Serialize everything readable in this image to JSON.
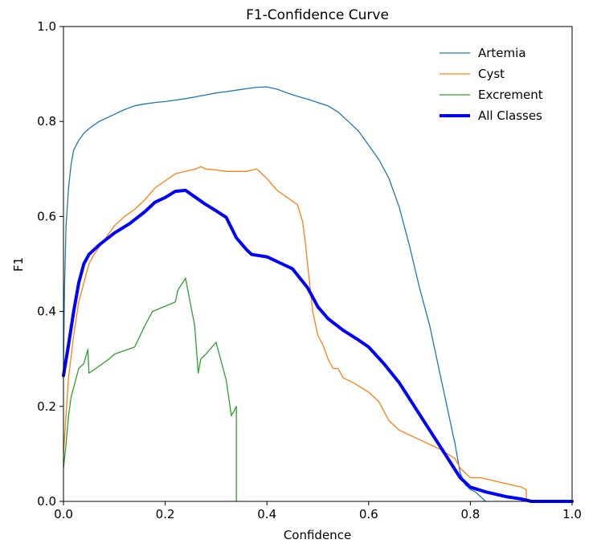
{
  "chart_data": {
    "type": "line",
    "title": "F1-Confidence Curve",
    "xlabel": "Confidence",
    "ylabel": "F1",
    "xlim": [
      0.0,
      1.0
    ],
    "ylim": [
      0.0,
      1.0
    ],
    "xticks": [
      "0.0",
      "0.2",
      "0.4",
      "0.6",
      "0.8",
      "1.0"
    ],
    "yticks": [
      "0.0",
      "0.2",
      "0.4",
      "0.6",
      "0.8",
      "1.0"
    ],
    "grid": false,
    "legend_position": "top-right",
    "series": [
      {
        "name": "Artemia",
        "color": "#1f77b4",
        "thick": false,
        "points": [
          [
            0.0,
            0.28
          ],
          [
            0.002,
            0.45
          ],
          [
            0.005,
            0.58
          ],
          [
            0.01,
            0.66
          ],
          [
            0.015,
            0.71
          ],
          [
            0.02,
            0.74
          ],
          [
            0.03,
            0.76
          ],
          [
            0.04,
            0.775
          ],
          [
            0.05,
            0.785
          ],
          [
            0.07,
            0.8
          ],
          [
            0.09,
            0.81
          ],
          [
            0.1,
            0.815
          ],
          [
            0.12,
            0.825
          ],
          [
            0.14,
            0.833
          ],
          [
            0.16,
            0.837
          ],
          [
            0.18,
            0.84
          ],
          [
            0.2,
            0.842
          ],
          [
            0.22,
            0.845
          ],
          [
            0.24,
            0.848
          ],
          [
            0.26,
            0.852
          ],
          [
            0.28,
            0.856
          ],
          [
            0.3,
            0.86
          ],
          [
            0.32,
            0.863
          ],
          [
            0.34,
            0.866
          ],
          [
            0.36,
            0.869
          ],
          [
            0.38,
            0.872
          ],
          [
            0.4,
            0.873
          ],
          [
            0.42,
            0.868
          ],
          [
            0.44,
            0.86
          ],
          [
            0.46,
            0.853
          ],
          [
            0.48,
            0.847
          ],
          [
            0.5,
            0.84
          ],
          [
            0.52,
            0.833
          ],
          [
            0.54,
            0.82
          ],
          [
            0.56,
            0.8
          ],
          [
            0.58,
            0.78
          ],
          [
            0.6,
            0.75
          ],
          [
            0.62,
            0.72
          ],
          [
            0.64,
            0.68
          ],
          [
            0.66,
            0.62
          ],
          [
            0.68,
            0.54
          ],
          [
            0.7,
            0.45
          ],
          [
            0.72,
            0.37
          ],
          [
            0.73,
            0.32
          ],
          [
            0.74,
            0.27
          ],
          [
            0.75,
            0.22
          ],
          [
            0.76,
            0.17
          ],
          [
            0.77,
            0.12
          ],
          [
            0.78,
            0.06
          ],
          [
            0.79,
            0.035
          ],
          [
            0.8,
            0.025
          ],
          [
            0.81,
            0.02
          ],
          [
            0.82,
            0.01
          ],
          [
            0.83,
            0.0
          ]
        ]
      },
      {
        "name": "Cyst",
        "color": "#ff7f0e",
        "thick": false,
        "points": [
          [
            0.0,
            0.1
          ],
          [
            0.01,
            0.26
          ],
          [
            0.02,
            0.35
          ],
          [
            0.03,
            0.42
          ],
          [
            0.04,
            0.46
          ],
          [
            0.05,
            0.5
          ],
          [
            0.06,
            0.52
          ],
          [
            0.08,
            0.55
          ],
          [
            0.1,
            0.58
          ],
          [
            0.12,
            0.6
          ],
          [
            0.14,
            0.615
          ],
          [
            0.16,
            0.635
          ],
          [
            0.18,
            0.66
          ],
          [
            0.2,
            0.675
          ],
          [
            0.22,
            0.69
          ],
          [
            0.24,
            0.695
          ],
          [
            0.26,
            0.7
          ],
          [
            0.27,
            0.705
          ],
          [
            0.28,
            0.7
          ],
          [
            0.3,
            0.698
          ],
          [
            0.32,
            0.695
          ],
          [
            0.34,
            0.695
          ],
          [
            0.36,
            0.695
          ],
          [
            0.38,
            0.7
          ],
          [
            0.4,
            0.68
          ],
          [
            0.42,
            0.655
          ],
          [
            0.44,
            0.64
          ],
          [
            0.46,
            0.625
          ],
          [
            0.47,
            0.59
          ],
          [
            0.475,
            0.55
          ],
          [
            0.48,
            0.5
          ],
          [
            0.485,
            0.45
          ],
          [
            0.49,
            0.4
          ],
          [
            0.5,
            0.35
          ],
          [
            0.51,
            0.33
          ],
          [
            0.52,
            0.3
          ],
          [
            0.53,
            0.28
          ],
          [
            0.54,
            0.28
          ],
          [
            0.55,
            0.26
          ],
          [
            0.57,
            0.25
          ],
          [
            0.6,
            0.23
          ],
          [
            0.62,
            0.21
          ],
          [
            0.64,
            0.17
          ],
          [
            0.66,
            0.15
          ],
          [
            0.7,
            0.13
          ],
          [
            0.74,
            0.11
          ],
          [
            0.77,
            0.09
          ],
          [
            0.78,
            0.07
          ],
          [
            0.8,
            0.05
          ],
          [
            0.82,
            0.05
          ],
          [
            0.86,
            0.04
          ],
          [
            0.9,
            0.03
          ],
          [
            0.91,
            0.025
          ],
          [
            0.91,
            0.0
          ]
        ]
      },
      {
        "name": "Excrement",
        "color": "#2ca02c",
        "thick": false,
        "points": [
          [
            0.0,
            0.07
          ],
          [
            0.005,
            0.12
          ],
          [
            0.01,
            0.18
          ],
          [
            0.015,
            0.22
          ],
          [
            0.02,
            0.24
          ],
          [
            0.025,
            0.26
          ],
          [
            0.03,
            0.28
          ],
          [
            0.04,
            0.29
          ],
          [
            0.048,
            0.32
          ],
          [
            0.05,
            0.27
          ],
          [
            0.07,
            0.285
          ],
          [
            0.09,
            0.3
          ],
          [
            0.1,
            0.31
          ],
          [
            0.14,
            0.325
          ],
          [
            0.16,
            0.37
          ],
          [
            0.175,
            0.4
          ],
          [
            0.22,
            0.42
          ],
          [
            0.225,
            0.445
          ],
          [
            0.24,
            0.47
          ],
          [
            0.258,
            0.37
          ],
          [
            0.265,
            0.27
          ],
          [
            0.27,
            0.3
          ],
          [
            0.28,
            0.31
          ],
          [
            0.3,
            0.335
          ],
          [
            0.32,
            0.255
          ],
          [
            0.33,
            0.18
          ],
          [
            0.34,
            0.2
          ],
          [
            0.34,
            0.0
          ]
        ]
      },
      {
        "name": "All Classes",
        "color": "#0000ff",
        "thick": true,
        "points": [
          [
            0.0,
            0.265
          ],
          [
            0.01,
            0.33
          ],
          [
            0.02,
            0.4
          ],
          [
            0.03,
            0.46
          ],
          [
            0.04,
            0.5
          ],
          [
            0.05,
            0.52
          ],
          [
            0.07,
            0.54
          ],
          [
            0.1,
            0.565
          ],
          [
            0.13,
            0.585
          ],
          [
            0.16,
            0.61
          ],
          [
            0.18,
            0.63
          ],
          [
            0.2,
            0.64
          ],
          [
            0.22,
            0.653
          ],
          [
            0.24,
            0.655
          ],
          [
            0.26,
            0.64
          ],
          [
            0.28,
            0.625
          ],
          [
            0.3,
            0.612
          ],
          [
            0.32,
            0.598
          ],
          [
            0.34,
            0.555
          ],
          [
            0.36,
            0.53
          ],
          [
            0.37,
            0.52
          ],
          [
            0.4,
            0.515
          ],
          [
            0.43,
            0.5
          ],
          [
            0.45,
            0.49
          ],
          [
            0.48,
            0.45
          ],
          [
            0.5,
            0.41
          ],
          [
            0.52,
            0.385
          ],
          [
            0.55,
            0.36
          ],
          [
            0.58,
            0.34
          ],
          [
            0.6,
            0.325
          ],
          [
            0.63,
            0.29
          ],
          [
            0.66,
            0.25
          ],
          [
            0.69,
            0.2
          ],
          [
            0.72,
            0.15
          ],
          [
            0.75,
            0.1
          ],
          [
            0.78,
            0.05
          ],
          [
            0.8,
            0.03
          ],
          [
            0.83,
            0.02
          ],
          [
            0.87,
            0.01
          ],
          [
            0.9,
            0.005
          ],
          [
            0.92,
            0.0
          ],
          [
            1.0,
            0.0
          ]
        ]
      }
    ]
  }
}
